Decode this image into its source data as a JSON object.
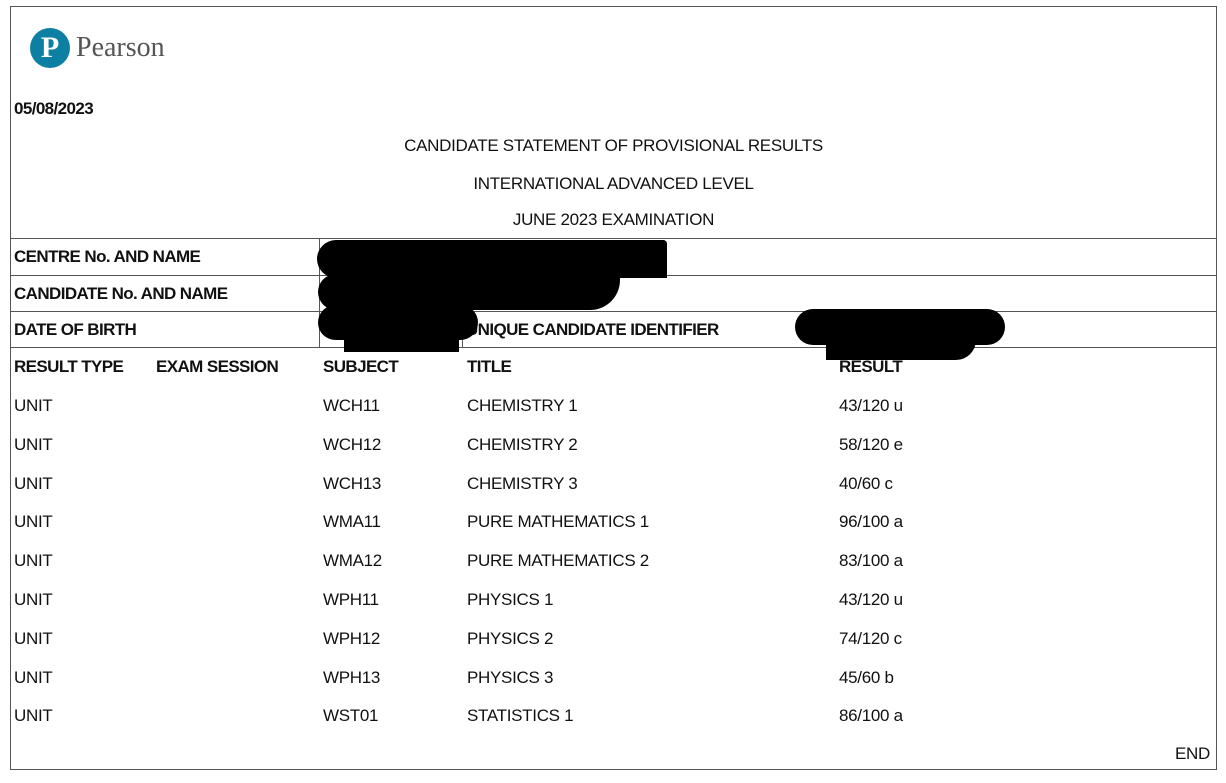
{
  "logo": {
    "text": "Pearson",
    "glyph": "P",
    "color": "#0d7fa3"
  },
  "date": "05/08/2023",
  "titles": [
    "CANDIDATE STATEMENT OF PROVISIONAL RESULTS",
    "INTERNATIONAL ADVANCED LEVEL",
    "JUNE 2023 EXAMINATION"
  ],
  "info": {
    "centre_label": "CENTRE No. AND NAME",
    "candidate_label": "CANDIDATE No. AND NAME",
    "dob_label": "DATE OF BIRTH",
    "uci_label": "UNIQUE CANDIDATE IDENTIFIER"
  },
  "table": {
    "headers": [
      "RESULT TYPE",
      "EXAM SESSION",
      "SUBJECT",
      "TITLE",
      "RESULT"
    ],
    "rows": [
      {
        "type": "UNIT",
        "subject": "WCH11",
        "title": "CHEMISTRY 1",
        "result": "43/120 u"
      },
      {
        "type": "UNIT",
        "subject": "WCH12",
        "title": "CHEMISTRY 2",
        "result": "58/120 e"
      },
      {
        "type": "UNIT",
        "subject": "WCH13",
        "title": "CHEMISTRY 3",
        "result": "40/60 c"
      },
      {
        "type": "UNIT",
        "subject": "WMA11",
        "title": "PURE MATHEMATICS 1",
        "result": "96/100 a"
      },
      {
        "type": "UNIT",
        "subject": "WMA12",
        "title": "PURE MATHEMATICS 2",
        "result": "83/100 a"
      },
      {
        "type": "UNIT",
        "subject": "WPH11",
        "title": "PHYSICS 1",
        "result": "43/120 u"
      },
      {
        "type": "UNIT",
        "subject": "WPH12",
        "title": "PHYSICS 2",
        "result": "74/120 c"
      },
      {
        "type": "UNIT",
        "subject": "WPH13",
        "title": "PHYSICS 3",
        "result": "45/60 b"
      },
      {
        "type": "UNIT",
        "subject": "WST01",
        "title": "STATISTICS 1",
        "result": "86/100 a"
      }
    ]
  },
  "footer": "END"
}
